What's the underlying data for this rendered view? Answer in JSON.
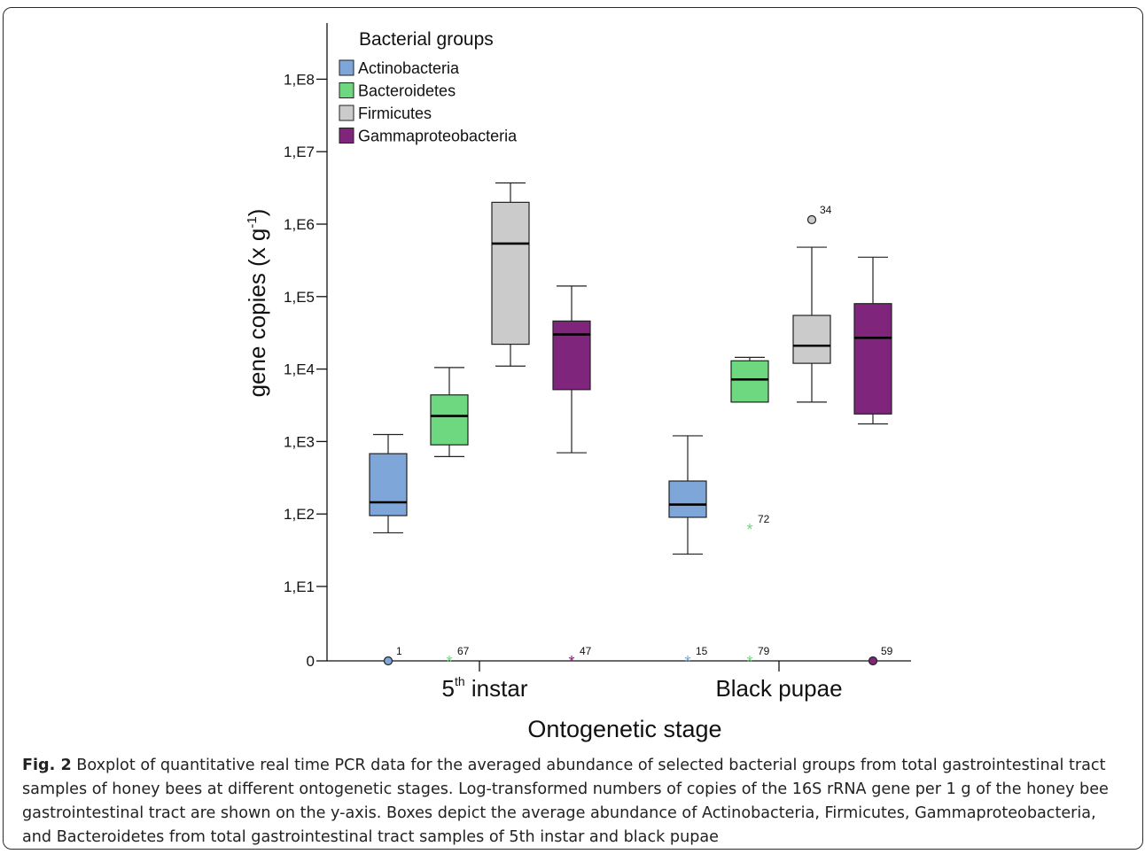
{
  "chart_data": {
    "type": "boxplot",
    "xlabel": "Ontogenetic stage",
    "ylabel": "gene copies (x g",
    "ylabel_sup": "-1",
    "ylabel_close": ")",
    "y_scale": "log10",
    "y_ticks": [
      {
        "label": "0",
        "value": 0
      },
      {
        "label": "1,E1",
        "value": 10
      },
      {
        "label": "1,E2",
        "value": 100
      },
      {
        "label": "1,E3",
        "value": 1000
      },
      {
        "label": "1,E4",
        "value": 10000
      },
      {
        "label": "1,E5",
        "value": 100000
      },
      {
        "label": "1,E6",
        "value": 1000000
      },
      {
        "label": "1,E7",
        "value": 10000000
      },
      {
        "label": "1,E8",
        "value": 100000000
      }
    ],
    "categories": [
      {
        "label": "5",
        "sup": "th",
        "rest": " instar"
      },
      {
        "label": "Black pupae",
        "sup": "",
        "rest": ""
      }
    ],
    "legend": {
      "title": "Bacterial groups",
      "position": "top-left"
    },
    "series": [
      {
        "name": "Actinobacteria",
        "color": "#7ea6d8",
        "boxes": [
          {
            "min": 55,
            "q1": 95,
            "median": 145,
            "q3": 680,
            "max": 1250
          },
          {
            "min": 28,
            "q1": 90,
            "median": 135,
            "q3": 285,
            "max": 1200
          }
        ],
        "outliers": [
          {
            "cat": 0,
            "value": 0,
            "label": "1",
            "marker": "circle"
          },
          {
            "cat": 1,
            "value": 0,
            "label": "15",
            "marker": "star"
          }
        ]
      },
      {
        "name": "Bacteroidetes",
        "color": "#6dd87f",
        "boxes": [
          {
            "min": 620,
            "q1": 900,
            "median": 2250,
            "q3": 4400,
            "max": 10500
          },
          {
            "min": 3500,
            "q1": 3500,
            "median": 7200,
            "q3": 13000,
            "max": 14500
          }
        ],
        "outliers": [
          {
            "cat": 0,
            "value": 0,
            "label": "67",
            "marker": "star"
          },
          {
            "cat": 1,
            "value": 62,
            "label": "72",
            "marker": "star"
          },
          {
            "cat": 1,
            "value": 0,
            "label": "79",
            "marker": "star"
          }
        ]
      },
      {
        "name": "Firmicutes",
        "color": "#cbcbcb",
        "boxes": [
          {
            "min": 11000,
            "q1": 22000,
            "median": 540000,
            "q3": 2000000,
            "max": 3700000
          },
          {
            "min": 3500,
            "q1": 12000,
            "median": 21000,
            "q3": 55000,
            "max": 480000
          }
        ],
        "outliers": [
          {
            "cat": 1,
            "value": 1150000,
            "label": "34",
            "marker": "circle"
          }
        ]
      },
      {
        "name": "Gammaproteobacteria",
        "color": "#7f267c",
        "boxes": [
          {
            "min": 700,
            "q1": 5200,
            "median": 30000,
            "q3": 46000,
            "max": 140000
          },
          {
            "min": 1750,
            "q1": 2400,
            "median": 27000,
            "q3": 80000,
            "max": 350000
          }
        ],
        "outliers": [
          {
            "cat": 0,
            "value": 0,
            "label": "47",
            "marker": "star"
          },
          {
            "cat": 1,
            "value": 0,
            "label": "59",
            "marker": "circle"
          }
        ]
      }
    ]
  },
  "caption": {
    "fig_label": "Fig. 2",
    "text": "Boxplot of quantitative real time PCR data for the averaged abundance of selected bacterial groups from total gastrointestinal tract samples of honey bees at different ontogenetic stages. Log-transformed numbers of copies of the 16S rRNA gene per 1 g of the honey bee gastrointestinal tract are shown on the y-axis. Boxes depict the average abundance of Actinobacteria, Firmicutes, Gammaproteobacteria, and Bacteroidetes from total gastrointestinal tract samples of 5th instar and black pupae"
  }
}
